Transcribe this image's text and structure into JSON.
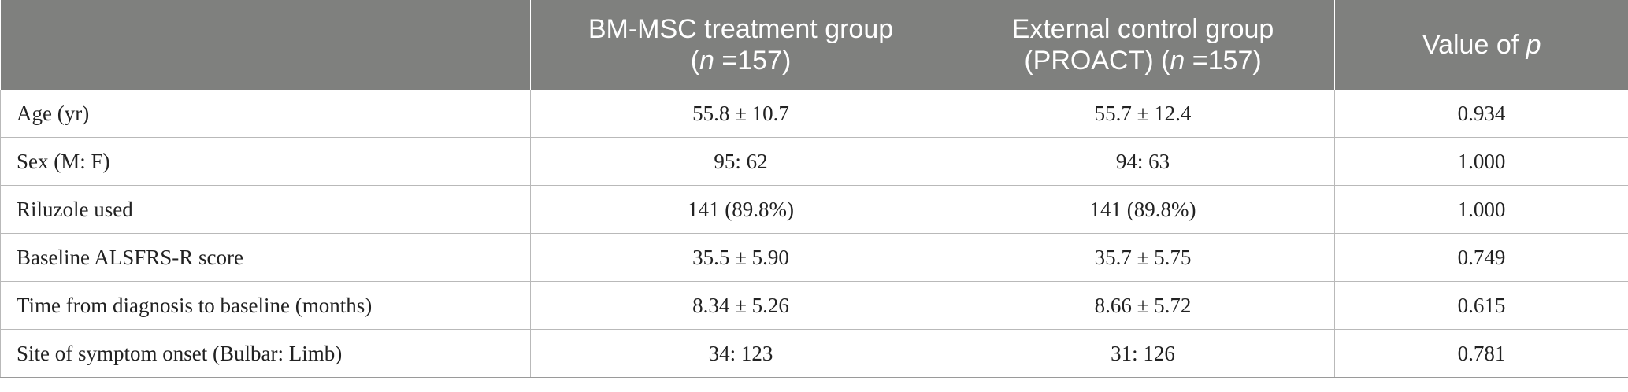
{
  "table": {
    "header": {
      "col0": "",
      "col1_line1": "BM-MSC treatment group",
      "col1_line2_prefix": "(",
      "col1_line2_n": "n",
      "col1_line2_suffix": " =157)",
      "col2_line1": "External control group",
      "col2_line2_prefix": "(PROACT) (",
      "col2_line2_n": "n",
      "col2_line2_suffix": " =157)",
      "col3_prefix": "Value of ",
      "col3_p": "p"
    },
    "rows": [
      {
        "label": "Age (yr)",
        "treatment": "55.8 ± 10.7",
        "control": "55.7 ± 12.4",
        "p": "0.934"
      },
      {
        "label": "Sex (M: F)",
        "treatment": "95: 62",
        "control": "94: 63",
        "p": "1.000"
      },
      {
        "label": "Riluzole used",
        "treatment": "141 (89.8%)",
        "control": "141 (89.8%)",
        "p": "1.000"
      },
      {
        "label": "Baseline ALSFRS-R score",
        "treatment": "35.5 ± 5.90",
        "control": "35.7 ± 5.75",
        "p": "0.749"
      },
      {
        "label": "Time from diagnosis to baseline (months)",
        "treatment": "8.34 ± 5.26",
        "control": "8.66 ± 5.72",
        "p": "0.615"
      },
      {
        "label": "Site of symptom onset (Bulbar: Limb)",
        "treatment": "34: 123",
        "control": "31: 126",
        "p": "0.781"
      }
    ],
    "colors": {
      "header_bg": "#7f807e",
      "header_text": "#ffffff",
      "grid": "#b9b9b9"
    }
  }
}
